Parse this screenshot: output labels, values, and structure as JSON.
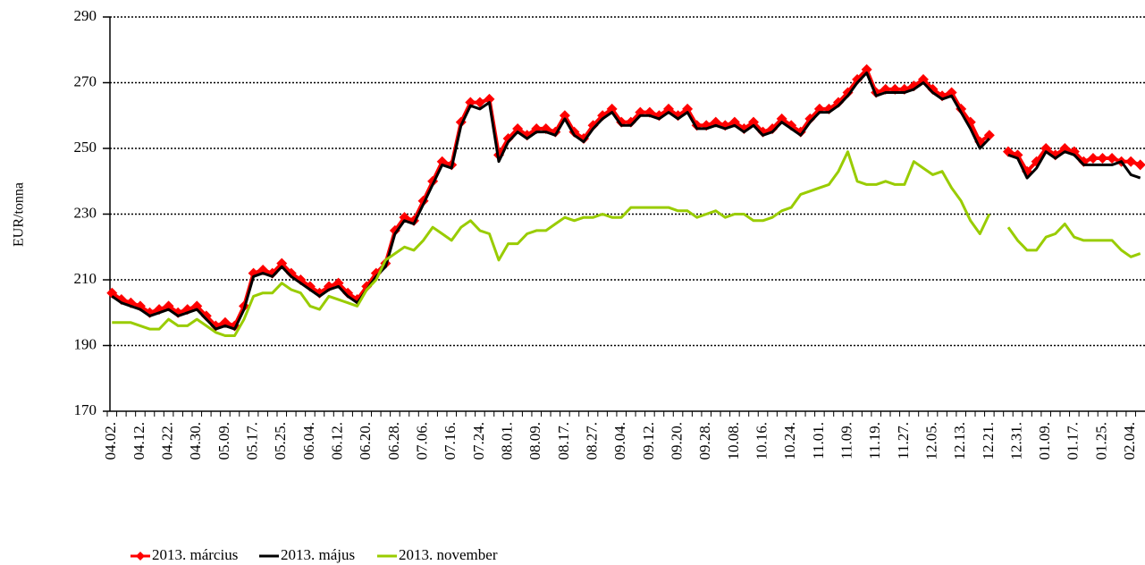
{
  "chart_data": {
    "type": "line",
    "y_axis_label": "EUR/tonna",
    "ylim": [
      170,
      290
    ],
    "yticks": [
      170,
      190,
      210,
      230,
      250,
      270,
      290
    ],
    "grid": true,
    "legend": "bottom",
    "categories": [
      "04.02.",
      null,
      null,
      "04.12.",
      null,
      null,
      "04.22.",
      null,
      null,
      "04.30.",
      null,
      null,
      "05.09.",
      null,
      null,
      "05.17.",
      null,
      null,
      "05.25.",
      null,
      null,
      "06.04.",
      null,
      null,
      "06.12.",
      null,
      null,
      "06.20.",
      null,
      null,
      "06.28.",
      null,
      null,
      "07.06.",
      null,
      null,
      "07.16.",
      null,
      null,
      "07.24.",
      null,
      null,
      "08.01.",
      null,
      null,
      "08.09.",
      null,
      null,
      "08.17.",
      null,
      null,
      "08.27.",
      null,
      null,
      "09.04.",
      null,
      null,
      "09.12.",
      null,
      null,
      "09.20.",
      null,
      null,
      "09.28.",
      null,
      null,
      "10.08.",
      null,
      null,
      "10.16.",
      null,
      null,
      "10.24.",
      null,
      null,
      "11.01.",
      null,
      null,
      "11.09.",
      null,
      null,
      "11.19.",
      null,
      null,
      "11.27.",
      null,
      null,
      "12.05.",
      null,
      null,
      "12.13.",
      null,
      null,
      "12.21.",
      null,
      null,
      "12.31.",
      null,
      null,
      "01.09.",
      null,
      null,
      "01.17.",
      null,
      null,
      "01.25.",
      null,
      null,
      "02.04.",
      null
    ],
    "series": [
      {
        "name": "2013. március",
        "color": "#ff0000",
        "marker": "diamond",
        "values": [
          206,
          204,
          203,
          202,
          200,
          201,
          202,
          200,
          201,
          202,
          199,
          196,
          197,
          196,
          202,
          212,
          213,
          212,
          215,
          212,
          210,
          208,
          206,
          208,
          209,
          206,
          204,
          208,
          212,
          215,
          225,
          229,
          228,
          234,
          240,
          246,
          245,
          258,
          264,
          264,
          265,
          248,
          253,
          256,
          254,
          256,
          256,
          255,
          260,
          255,
          253,
          257,
          260,
          262,
          258,
          258,
          261,
          261,
          260,
          262,
          260,
          262,
          257,
          257,
          258,
          257,
          258,
          256,
          258,
          255,
          256,
          259,
          257,
          255,
          259,
          262,
          262,
          264,
          267,
          271,
          274,
          267,
          268,
          268,
          268,
          269,
          271,
          268,
          266,
          267,
          262,
          258,
          252,
          254,
          null,
          249,
          248,
          243,
          246,
          250,
          248,
          250,
          249,
          246,
          247,
          247,
          247,
          246,
          246,
          245
        ]
      },
      {
        "name": "2013. május",
        "color": "#000000",
        "values": [
          205,
          203,
          202,
          201,
          199,
          200,
          201,
          199,
          200,
          201,
          198,
          195,
          196,
          195,
          201,
          211,
          212,
          211,
          214,
          211,
          209,
          207,
          205,
          207,
          208,
          205,
          203,
          207,
          211,
          214,
          224,
          228,
          227,
          233,
          239,
          245,
          244,
          257,
          263,
          262,
          264,
          246,
          252,
          255,
          253,
          255,
          255,
          254,
          259,
          254,
          252,
          256,
          259,
          261,
          257,
          257,
          260,
          260,
          259,
          261,
          259,
          261,
          256,
          256,
          257,
          256,
          257,
          255,
          257,
          254,
          255,
          258,
          256,
          254,
          258,
          261,
          261,
          263,
          266,
          270,
          273,
          266,
          267,
          267,
          267,
          268,
          270,
          267,
          265,
          266,
          261,
          256,
          250,
          253,
          null,
          248,
          247,
          241,
          244,
          249,
          247,
          249,
          248,
          245,
          245,
          245,
          245,
          246,
          242,
          241
        ]
      },
      {
        "name": "2013. november",
        "color": "#99cc00",
        "values": [
          197,
          197,
          197,
          196,
          195,
          195,
          198,
          196,
          196,
          198,
          196,
          194,
          193,
          193,
          198,
          205,
          206,
          206,
          209,
          207,
          206,
          202,
          201,
          205,
          204,
          203,
          202,
          207,
          210,
          216,
          218,
          220,
          219,
          222,
          226,
          224,
          222,
          226,
          228,
          225,
          224,
          216,
          221,
          221,
          224,
          225,
          225,
          227,
          229,
          228,
          229,
          229,
          230,
          229,
          229,
          232,
          232,
          232,
          232,
          232,
          231,
          231,
          229,
          230,
          231,
          229,
          230,
          230,
          228,
          228,
          229,
          231,
          232,
          236,
          237,
          238,
          239,
          243,
          249,
          240,
          239,
          239,
          240,
          239,
          239,
          246,
          244,
          242,
          243,
          238,
          234,
          228,
          224,
          230,
          null,
          226,
          222,
          219,
          219,
          223,
          224,
          227,
          223,
          222,
          222,
          222,
          222,
          219,
          217,
          218
        ]
      }
    ]
  }
}
